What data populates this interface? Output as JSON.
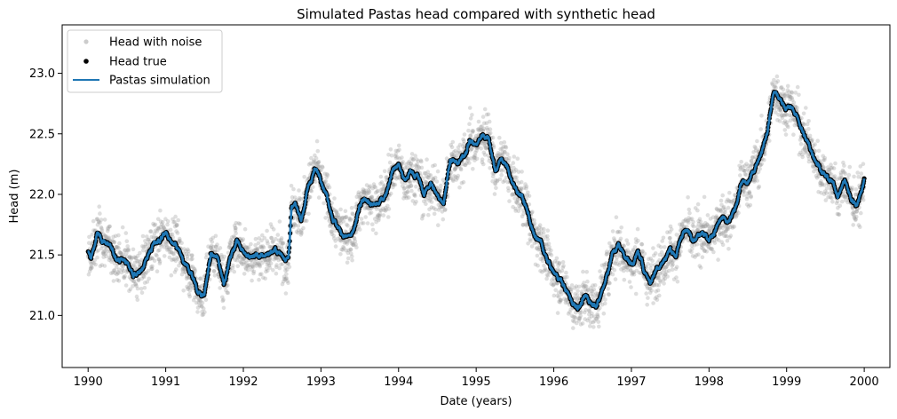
{
  "chart_data": {
    "type": "line",
    "title": "Simulated Pastas head compared with synthetic head",
    "xlabel": "Date (years)",
    "ylabel": "Head (m)",
    "xlim": [
      "1989-09-01",
      "2000-05-01"
    ],
    "ylim": [
      20.57,
      23.4
    ],
    "x_ticks": [
      "1990",
      "1991",
      "1992",
      "1993",
      "1994",
      "1995",
      "1996",
      "1997",
      "1998",
      "1999",
      "2000"
    ],
    "y_ticks": [
      "21.0",
      "21.5",
      "22.0",
      "22.5",
      "23.0"
    ],
    "grid": false,
    "legend_position": "top-left",
    "noise_sd": 0.2,
    "series": [
      {
        "name": "Head with noise",
        "style": "markers",
        "color": "#999999"
      },
      {
        "name": "Head true",
        "style": "markers",
        "color": "#000000"
      },
      {
        "name": "Pastas simulation",
        "style": "line",
        "color": "#1f77b4"
      }
    ],
    "true_head": [
      [
        "1990-01-01",
        21.52
      ],
      [
        "1990-01-15",
        21.47
      ],
      [
        "1990-02-01",
        21.58
      ],
      [
        "1990-02-15",
        21.68
      ],
      [
        "1990-03-01",
        21.63
      ],
      [
        "1990-04-01",
        21.6
      ],
      [
        "1990-05-01",
        21.5
      ],
      [
        "1990-06-01",
        21.47
      ],
      [
        "1990-07-01",
        21.44
      ],
      [
        "1990-08-01",
        21.35
      ],
      [
        "1990-09-01",
        21.34
      ],
      [
        "1990-10-01",
        21.47
      ],
      [
        "1990-11-01",
        21.58
      ],
      [
        "1990-12-01",
        21.62
      ],
      [
        "1991-01-01",
        21.68
      ],
      [
        "1991-02-01",
        21.58
      ],
      [
        "1991-03-01",
        21.53
      ],
      [
        "1991-04-01",
        21.4
      ],
      [
        "1991-05-01",
        21.35
      ],
      [
        "1991-06-01",
        21.2
      ],
      [
        "1991-07-01",
        21.17
      ],
      [
        "1991-08-01",
        21.5
      ],
      [
        "1991-09-01",
        21.47
      ],
      [
        "1991-10-01",
        21.28
      ],
      [
        "1991-11-01",
        21.48
      ],
      [
        "1991-12-01",
        21.62
      ],
      [
        "1992-01-01",
        21.55
      ],
      [
        "1992-02-01",
        21.47
      ],
      [
        "1992-03-01",
        21.5
      ],
      [
        "1992-04-01",
        21.48
      ],
      [
        "1992-05-01",
        21.52
      ],
      [
        "1992-06-01",
        21.54
      ],
      [
        "1992-07-01",
        21.5
      ],
      [
        "1992-08-01",
        21.48
      ],
      [
        "1992-08-15",
        21.88
      ],
      [
        "1992-09-01",
        21.9
      ],
      [
        "1992-10-01",
        21.8
      ],
      [
        "1992-11-01",
        22.05
      ],
      [
        "1992-12-01",
        22.2
      ],
      [
        "1993-01-01",
        22.15
      ],
      [
        "1993-02-01",
        21.98
      ],
      [
        "1993-03-01",
        21.8
      ],
      [
        "1993-04-01",
        21.7
      ],
      [
        "1993-05-01",
        21.65
      ],
      [
        "1993-06-01",
        21.66
      ],
      [
        "1993-07-01",
        21.88
      ],
      [
        "1993-08-01",
        21.97
      ],
      [
        "1993-09-01",
        21.9
      ],
      [
        "1993-10-01",
        21.92
      ],
      [
        "1993-11-01",
        22.0
      ],
      [
        "1993-12-01",
        22.2
      ],
      [
        "1994-01-01",
        22.25
      ],
      [
        "1994-02-01",
        22.1
      ],
      [
        "1994-03-01",
        22.2
      ],
      [
        "1994-04-01",
        22.15
      ],
      [
        "1994-05-01",
        22.0
      ],
      [
        "1994-06-01",
        22.1
      ],
      [
        "1994-07-01",
        21.98
      ],
      [
        "1994-08-01",
        21.95
      ],
      [
        "1994-09-01",
        22.3
      ],
      [
        "1994-10-01",
        22.25
      ],
      [
        "1994-11-01",
        22.3
      ],
      [
        "1994-12-01",
        22.45
      ],
      [
        "1995-01-01",
        22.4
      ],
      [
        "1995-02-01",
        22.5
      ],
      [
        "1995-03-01",
        22.47
      ],
      [
        "1995-04-01",
        22.2
      ],
      [
        "1995-05-01",
        22.3
      ],
      [
        "1995-06-01",
        22.2
      ],
      [
        "1995-07-01",
        22.05
      ],
      [
        "1995-08-01",
        22.0
      ],
      [
        "1995-09-01",
        21.85
      ],
      [
        "1995-10-01",
        21.65
      ],
      [
        "1995-11-01",
        21.6
      ],
      [
        "1995-12-01",
        21.45
      ],
      [
        "1996-01-01",
        21.35
      ],
      [
        "1996-02-01",
        21.3
      ],
      [
        "1996-03-01",
        21.2
      ],
      [
        "1996-04-01",
        21.1
      ],
      [
        "1996-05-01",
        21.08
      ],
      [
        "1996-06-01",
        21.15
      ],
      [
        "1996-07-01",
        21.1
      ],
      [
        "1996-08-01",
        21.12
      ],
      [
        "1996-09-01",
        21.3
      ],
      [
        "1996-10-01",
        21.5
      ],
      [
        "1996-11-01",
        21.58
      ],
      [
        "1996-12-01",
        21.5
      ],
      [
        "1997-01-01",
        21.42
      ],
      [
        "1997-02-01",
        21.52
      ],
      [
        "1997-03-01",
        21.38
      ],
      [
        "1997-04-01",
        21.28
      ],
      [
        "1997-05-01",
        21.4
      ],
      [
        "1997-06-01",
        21.45
      ],
      [
        "1997-07-01",
        21.55
      ],
      [
        "1997-08-01",
        21.5
      ],
      [
        "1997-09-01",
        21.7
      ],
      [
        "1997-10-01",
        21.68
      ],
      [
        "1997-11-01",
        21.65
      ],
      [
        "1997-12-01",
        21.72
      ],
      [
        "1998-01-01",
        21.62
      ],
      [
        "1998-02-01",
        21.72
      ],
      [
        "1998-03-01",
        21.8
      ],
      [
        "1998-04-01",
        21.75
      ],
      [
        "1998-05-01",
        21.85
      ],
      [
        "1998-06-01",
        22.1
      ],
      [
        "1998-07-01",
        22.08
      ],
      [
        "1998-08-01",
        22.2
      ],
      [
        "1998-09-01",
        22.35
      ],
      [
        "1998-10-01",
        22.5
      ],
      [
        "1998-11-01",
        22.85
      ],
      [
        "1998-12-01",
        22.78
      ],
      [
        "1999-01-01",
        22.72
      ],
      [
        "1999-02-01",
        22.7
      ],
      [
        "1999-03-01",
        22.6
      ],
      [
        "1999-04-01",
        22.45
      ],
      [
        "1999-05-01",
        22.35
      ],
      [
        "1999-06-01",
        22.25
      ],
      [
        "1999-07-01",
        22.15
      ],
      [
        "1999-08-01",
        22.1
      ],
      [
        "1999-09-01",
        22.0
      ],
      [
        "1999-10-01",
        22.12
      ],
      [
        "1999-11-01",
        21.95
      ],
      [
        "1999-12-01",
        21.93
      ],
      [
        "2000-01-01",
        22.13
      ]
    ]
  }
}
